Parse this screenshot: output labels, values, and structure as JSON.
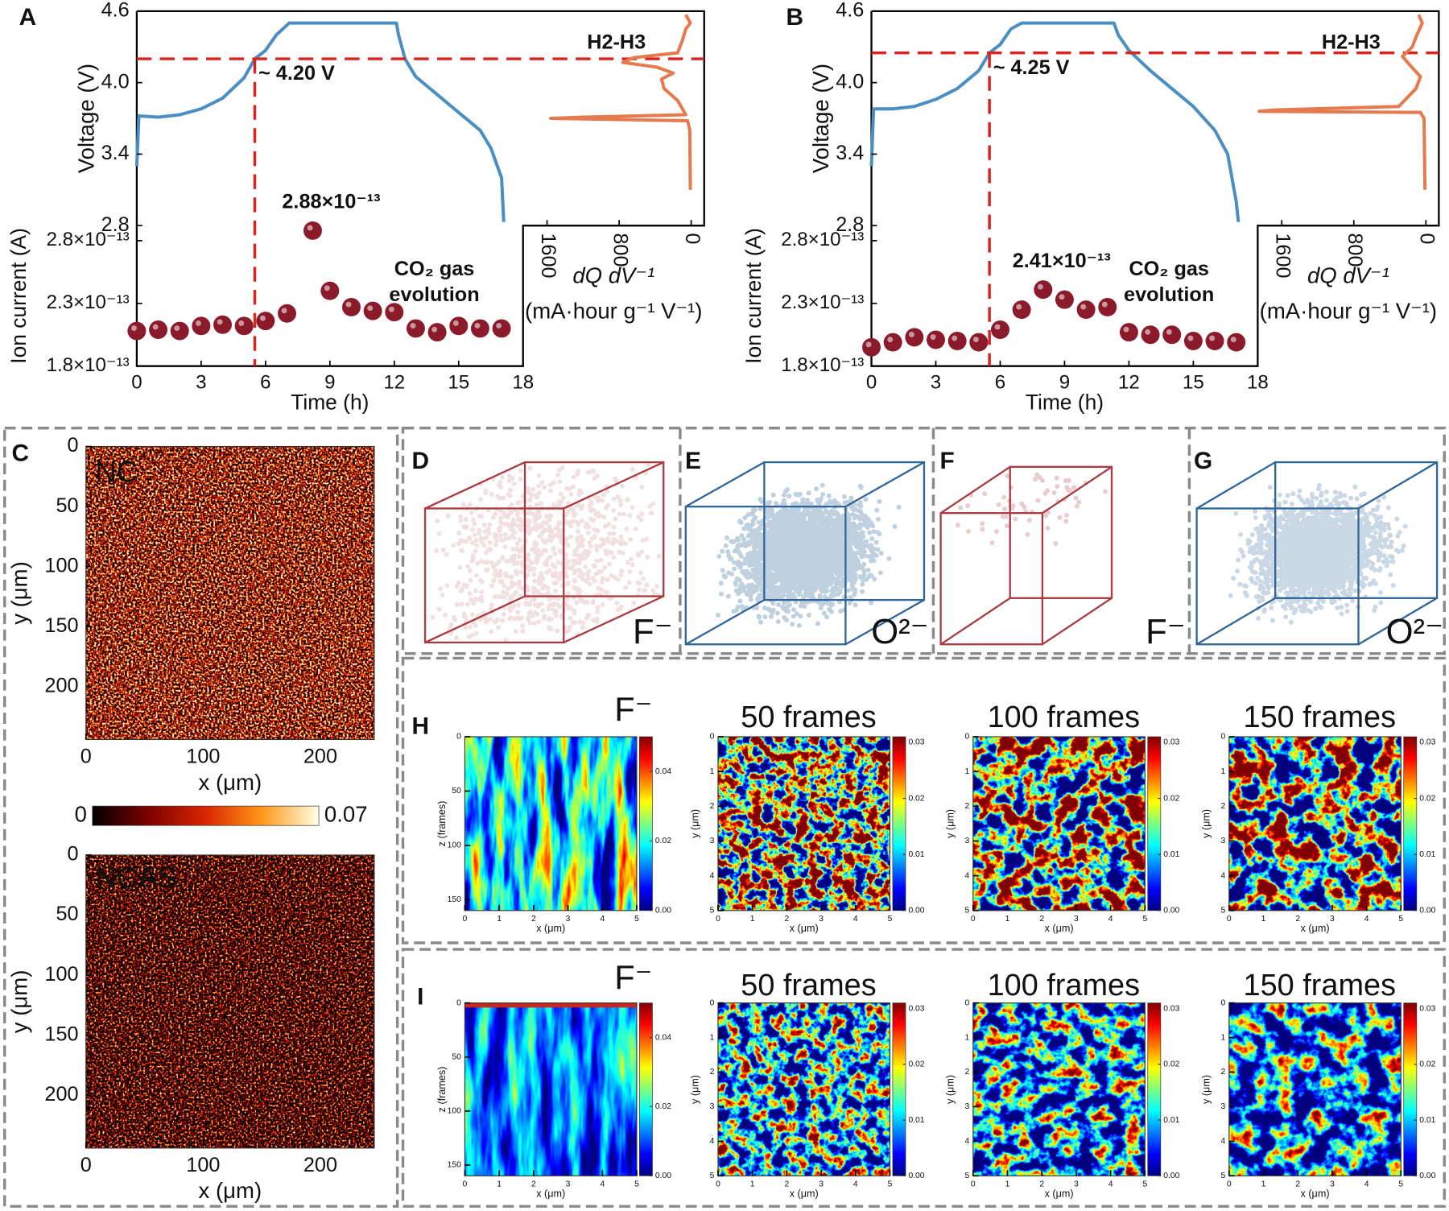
{
  "chart_data": [
    {
      "type": "line",
      "panel": "A",
      "ylabel": "Voltage (V)",
      "color": "#4a8ec2",
      "x": [
        0,
        0.1,
        1,
        2,
        3,
        4,
        5,
        5.5,
        6,
        6.5,
        7.1,
        9,
        12.1,
        12.2,
        12.5,
        13,
        14,
        15,
        16,
        16.5,
        17,
        17.1
      ],
      "values": [
        3.3,
        3.72,
        3.71,
        3.73,
        3.78,
        3.87,
        4.04,
        4.2,
        4.27,
        4.4,
        4.5,
        4.5,
        4.5,
        4.4,
        4.2,
        4.05,
        3.9,
        3.75,
        3.6,
        3.45,
        3.2,
        2.83
      ],
      "xlim": [
        0,
        18
      ],
      "ylim": [
        2.8,
        4.6
      ],
      "yticks": [
        4.6,
        {
          "value": 4.0,
          "label": "4.0"
        },
        3.4,
        2.8
      ],
      "reference": {
        "x": 5.5,
        "y": 4.2,
        "label": "~ 4.20 V",
        "color": "#d9231e"
      }
    },
    {
      "type": "scatter",
      "ylabel": "Ion current (A)",
      "xlabel": "Time (h)",
      "color": "#8b1a2b",
      "x": [
        0,
        1,
        2,
        3,
        4,
        5,
        6,
        7,
        8.2,
        9,
        10,
        11,
        12,
        13,
        14,
        15,
        16,
        17
      ],
      "values": [
        2.08e-13,
        2.09e-13,
        2.08e-13,
        2.12e-13,
        2.13e-13,
        2.12e-13,
        2.16e-13,
        2.22e-13,
        2.88e-13,
        2.4e-13,
        2.27e-13,
        2.24e-13,
        2.23e-13,
        2.1e-13,
        2.07e-13,
        2.12e-13,
        2.1e-13,
        2.1e-13
      ],
      "value_labels": [
        null,
        null,
        null,
        null,
        null,
        null,
        null,
        null,
        "2.88×10⁻¹³",
        null,
        null,
        null,
        null,
        null,
        null,
        null,
        null,
        null
      ],
      "xlim": [
        0,
        18
      ],
      "xticks": [
        0,
        3,
        6,
        9,
        12,
        15,
        18
      ],
      "ylim": [
        1.8e-13,
        2.92e-13
      ],
      "yticks": [
        {
          "value": 1.8e-13,
          "label": "1.8×10⁻¹³"
        },
        {
          "value": 2.3e-13,
          "label": "2.3×10⁻¹³"
        },
        {
          "value": 2.8e-13,
          "label": "2.8×10⁻¹³"
        }
      ],
      "annotation": [
        "CO₂ gas",
        "evolution"
      ]
    },
    {
      "type": "line",
      "xlabel": [
        "dQ dV⁻¹",
        "(mA·hour g⁻¹ V⁻¹)"
      ],
      "color": "#e57a4e",
      "x": [
        10,
        15,
        40,
        1560,
        1200,
        60,
        150,
        300,
        330,
        200,
        380,
        760,
        640,
        150,
        100,
        60,
        10,
        60
      ],
      "values": [
        3.1,
        3.6,
        3.68,
        3.7,
        3.71,
        3.73,
        3.85,
        3.95,
        4.03,
        4.08,
        4.13,
        4.17,
        4.21,
        4.25,
        4.35,
        4.45,
        4.5,
        4.57
      ],
      "xlim": [
        1867,
        -144
      ],
      "xticks": [
        1600,
        800,
        0
      ],
      "ylim": [
        2.8,
        4.6
      ],
      "annotation": [
        "H2-H3"
      ]
    },
    {
      "type": "line",
      "panel": "B",
      "ylabel": "Voltage (V)",
      "color": "#4a8ec2",
      "x": [
        0,
        0.1,
        1,
        2,
        3,
        4,
        5,
        5.5,
        6,
        6.5,
        7,
        11.3,
        11.5,
        12,
        13,
        14,
        15,
        16,
        16.6,
        17,
        17.1
      ],
      "values": [
        3.3,
        3.78,
        3.78,
        3.8,
        3.86,
        3.95,
        4.1,
        4.25,
        4.32,
        4.45,
        4.5,
        4.5,
        4.4,
        4.27,
        4.1,
        3.95,
        3.8,
        3.6,
        3.4,
        3.0,
        2.83
      ],
      "xlim": [
        0,
        18
      ],
      "ylim": [
        2.8,
        4.6
      ],
      "yticks": [
        4.6,
        {
          "value": 4.0,
          "label": "4.0"
        },
        3.4,
        2.8
      ],
      "reference": {
        "x": 5.5,
        "y": 4.25,
        "label": "~ 4.25 V",
        "color": "#d9231e"
      }
    },
    {
      "type": "scatter",
      "ylabel": "Ion current (A)",
      "xlabel": "Time (h)",
      "color": "#8b1a2b",
      "x": [
        0,
        1,
        2,
        3,
        4,
        5,
        6,
        7,
        8,
        9,
        10,
        11,
        12,
        13,
        14,
        15,
        16,
        17
      ],
      "values": [
        1.95e-13,
        1.99e-13,
        2.03e-13,
        2.01e-13,
        2e-13,
        1.99e-13,
        2.09e-13,
        2.25e-13,
        2.41e-13,
        2.33e-13,
        2.25e-13,
        2.27e-13,
        2.07e-13,
        2.05e-13,
        2.05e-13,
        2e-13,
        2e-13,
        1.99e-13
      ],
      "value_labels": [
        null,
        null,
        null,
        null,
        null,
        null,
        null,
        null,
        "2.41×10⁻¹³",
        null,
        null,
        null,
        null,
        null,
        null,
        null,
        null,
        null
      ],
      "xlim": [
        0,
        18
      ],
      "xticks": [
        0,
        3,
        6,
        9,
        12,
        15,
        18
      ],
      "ylim": [
        1.8e-13,
        2.92e-13
      ],
      "yticks": [
        {
          "value": 1.8e-13,
          "label": "1.8×10⁻¹³"
        },
        {
          "value": 2.3e-13,
          "label": "2.3×10⁻¹³"
        },
        {
          "value": 2.8e-13,
          "label": "2.8×10⁻¹³"
        }
      ],
      "annotation": [
        "CO₂ gas",
        "evolution"
      ]
    },
    {
      "type": "line",
      "xlabel": [
        "dQ dV⁻¹",
        "(mA·hour g⁻¹ V⁻¹)"
      ],
      "color": "#e57a4e",
      "x": [
        10,
        20,
        60,
        1850,
        1700,
        300,
        110,
        60,
        180,
        260,
        150,
        100,
        40,
        80
      ],
      "values": [
        3.1,
        3.7,
        3.75,
        3.76,
        3.77,
        3.8,
        3.95,
        4.05,
        4.15,
        4.22,
        4.3,
        4.4,
        4.5,
        4.57
      ],
      "xlim": [
        1867,
        -144
      ],
      "xticks": [
        1600,
        800,
        0
      ],
      "ylim": [
        2.8,
        4.6
      ],
      "annotation": [
        "H2-H3"
      ]
    },
    {
      "type": "heatmap",
      "panel": "C",
      "title": "NC",
      "xlabel": "x (μm)",
      "ylabel": "y (μm)",
      "colormap": "hot",
      "xlim": [
        0,
        246
      ],
      "xticks": [
        0,
        100,
        200
      ],
      "ylim": [
        244,
        0
      ],
      "yticks": [
        0,
        50,
        100,
        150,
        200
      ],
      "colorbar": {
        "lim": [
          0,
          0.07
        ],
        "ticks": [
          0,
          0.07
        ]
      }
    },
    {
      "type": "heatmap",
      "title": "NCAS",
      "xlabel": "x (μm)",
      "ylabel": "y (μm)",
      "colormap": "hot",
      "xlim": [
        0,
        246
      ],
      "xticks": [
        0,
        100,
        200
      ],
      "ylim": [
        244,
        0
      ],
      "yticks": [
        0,
        50,
        100,
        150,
        200
      ]
    },
    {
      "type": "scatter3d",
      "panel": "D",
      "label": "F⁻",
      "color": "#a83a40"
    },
    {
      "type": "scatter3d",
      "panel": "E",
      "label": "O²⁻",
      "color": "#2f6598"
    },
    {
      "type": "scatter3d",
      "panel": "F",
      "label": "F⁻",
      "color": "#a83a40"
    },
    {
      "type": "scatter3d",
      "panel": "G",
      "label": "O²⁻",
      "color": "#2f6598"
    },
    {
      "type": "heatmap",
      "panel": "H",
      "title": "F⁻",
      "xlabel": "x (μm)",
      "ylabel": "z (frames)",
      "colormap": "jet",
      "xlim": [
        0,
        5
      ],
      "xticks": [
        0,
        1,
        2,
        3,
        4,
        5
      ],
      "ylim": [
        160,
        0
      ],
      "yticks": [
        0,
        50,
        100,
        150
      ],
      "colorbar": {
        "lim": [
          0,
          0.05
        ],
        "ticks": [
          {
            "value": 0,
            "label": "0.00"
          },
          0.02,
          0.04
        ]
      }
    },
    {
      "type": "heatmap",
      "title": "50 frames",
      "xlabel": "x (μm)",
      "ylabel": "y (μm)",
      "colormap": "jet",
      "xlim": [
        0,
        5
      ],
      "xticks": [
        0,
        1,
        2,
        3,
        4,
        5
      ],
      "ylim": [
        5,
        0
      ],
      "yticks": [
        0,
        1,
        2,
        3,
        4,
        5
      ],
      "colorbar": {
        "lim": [
          0,
          0.031
        ],
        "ticks": [
          {
            "value": 0,
            "label": "0.00"
          },
          0.01,
          0.02,
          0.03
        ]
      }
    },
    {
      "type": "heatmap",
      "title": "100 frames",
      "xlabel": "x (μm)",
      "ylabel": "y (μm)",
      "colormap": "jet",
      "xlim": [
        0,
        5
      ],
      "xticks": [
        0,
        1,
        2,
        3,
        4,
        5
      ],
      "ylim": [
        5,
        0
      ],
      "yticks": [
        0,
        1,
        2,
        3,
        4,
        5
      ],
      "colorbar": {
        "lim": [
          0,
          0.031
        ],
        "ticks": [
          {
            "value": 0,
            "label": "0.00"
          },
          0.01,
          0.02,
          0.03
        ]
      }
    },
    {
      "type": "heatmap",
      "title": "150 frames",
      "xlabel": "x (μm)",
      "ylabel": "y (μm)",
      "colormap": "jet",
      "xlim": [
        0,
        5
      ],
      "xticks": [
        0,
        1,
        2,
        3,
        4,
        5
      ],
      "ylim": [
        5,
        0
      ],
      "yticks": [
        0,
        1,
        2,
        3,
        4,
        5
      ],
      "colorbar": {
        "lim": [
          0,
          0.031
        ],
        "ticks": [
          {
            "value": 0,
            "label": "0.00"
          },
          0.01,
          0.02,
          0.03
        ]
      }
    },
    {
      "type": "heatmap",
      "panel": "I",
      "title": "F⁻",
      "xlabel": "x (μm)",
      "ylabel": "z (frames)",
      "colormap": "jet",
      "xlim": [
        0,
        5
      ],
      "xticks": [
        0,
        1,
        2,
        3,
        4,
        5
      ],
      "ylim": [
        160,
        0
      ],
      "yticks": [
        0,
        50,
        100,
        150
      ],
      "colorbar": {
        "lim": [
          0,
          0.05
        ],
        "ticks": [
          {
            "value": 0,
            "label": "0.00"
          },
          0.02,
          0.04
        ]
      }
    },
    {
      "type": "heatmap",
      "title": "50 frames",
      "xlabel": "x (μm)",
      "ylabel": "y (μm)",
      "colormap": "jet",
      "xlim": [
        0,
        5
      ],
      "xticks": [
        0,
        1,
        2,
        3,
        4,
        5
      ],
      "ylim": [
        5,
        0
      ],
      "yticks": [
        0,
        1,
        2,
        3,
        4,
        5
      ],
      "colorbar": {
        "lim": [
          0,
          0.031
        ],
        "ticks": [
          {
            "value": 0,
            "label": "0.00"
          },
          0.01,
          0.02,
          0.03
        ]
      }
    },
    {
      "type": "heatmap",
      "title": "100 frames",
      "xlabel": "x (μm)",
      "ylabel": "y (μm)",
      "colormap": "jet",
      "xlim": [
        0,
        5
      ],
      "xticks": [
        0,
        1,
        2,
        3,
        4,
        5
      ],
      "ylim": [
        5,
        0
      ],
      "yticks": [
        0,
        1,
        2,
        3,
        4,
        5
      ],
      "colorbar": {
        "lim": [
          0,
          0.031
        ],
        "ticks": [
          {
            "value": 0,
            "label": "0.00"
          },
          0.01,
          0.02,
          0.03
        ]
      }
    },
    {
      "type": "heatmap",
      "title": "150 frames",
      "xlabel": "x (μm)",
      "ylabel": "y (μm)",
      "colormap": "jet",
      "xlim": [
        0,
        5
      ],
      "xticks": [
        0,
        1,
        2,
        3,
        4,
        5
      ],
      "ylim": [
        5,
        0
      ],
      "yticks": [
        0,
        1,
        2,
        3,
        4,
        5
      ],
      "colorbar": {
        "lim": [
          0,
          0.031
        ],
        "ticks": [
          {
            "value": 0,
            "label": "0.00"
          },
          0.01,
          0.02,
          0.03
        ]
      }
    }
  ]
}
